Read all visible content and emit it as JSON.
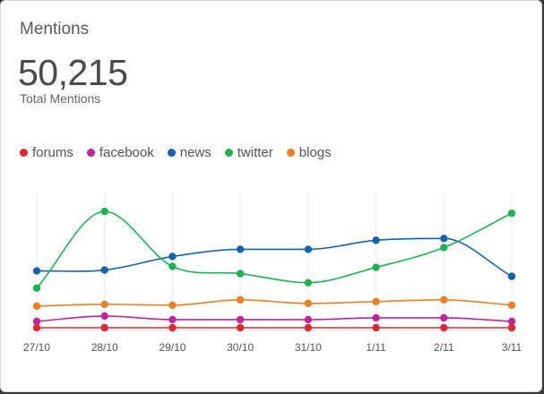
{
  "card": {
    "title": "Mentions",
    "total_value": "50,215",
    "total_label": "Total Mentions"
  },
  "chart_data": {
    "type": "line",
    "categories": [
      "27/10",
      "28/10",
      "29/10",
      "30/10",
      "31/10",
      "1/11",
      "2/11",
      "3/11"
    ],
    "grid": "vertical",
    "legend_placement": "top-left",
    "series": [
      {
        "name": "forums",
        "color": "#e0282e",
        "values": [
          1,
          1,
          1,
          1,
          1,
          1,
          1,
          1
        ]
      },
      {
        "name": "facebook",
        "color": "#c4239c",
        "values": [
          8,
          14,
          10,
          10,
          10,
          12,
          12,
          8
        ]
      },
      {
        "name": "news",
        "color": "#1463b0",
        "values": [
          64,
          65,
          80,
          88,
          88,
          98,
          100,
          58
        ]
      },
      {
        "name": "twitter",
        "color": "#1db352",
        "values": [
          45,
          130,
          69,
          61,
          51,
          68,
          90,
          128
        ]
      },
      {
        "name": "blogs",
        "color": "#ef7f22",
        "values": [
          25,
          27,
          26,
          32,
          28,
          30,
          32,
          26
        ]
      }
    ]
  }
}
